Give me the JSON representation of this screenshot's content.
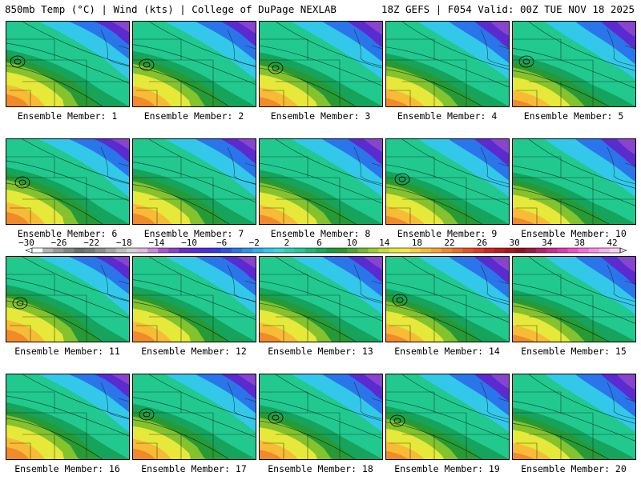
{
  "header": {
    "left_title": "850mb Temp (°C) | Wind (kts) | College of DuPage NEXLAB",
    "right_title": "18Z GEFS | F054 Valid: 00Z TUE NOV 18 2025"
  },
  "panels": [
    {
      "label": "Ensemble Member: 1",
      "low": true
    },
    {
      "label": "Ensemble Member: 2",
      "low": true
    },
    {
      "label": "Ensemble Member: 3",
      "low": true
    },
    {
      "label": "Ensemble Member: 4",
      "low": false
    },
    {
      "label": "Ensemble Member: 5",
      "low": true
    },
    {
      "label": "Ensemble Member: 6",
      "low": true
    },
    {
      "label": "Ensemble Member: 7",
      "low": false
    },
    {
      "label": "Ensemble Member: 8",
      "low": false
    },
    {
      "label": "Ensemble Member: 9",
      "low": true
    },
    {
      "label": "Ensemble Member: 10",
      "low": false
    },
    {
      "label": "Ensemble Member: 11",
      "low": true
    },
    {
      "label": "Ensemble Member: 12",
      "low": false
    },
    {
      "label": "Ensemble Member: 13",
      "low": false
    },
    {
      "label": "Ensemble Member: 14",
      "low": true
    },
    {
      "label": "Ensemble Member: 15",
      "low": false
    },
    {
      "label": "Ensemble Member: 16",
      "low": false
    },
    {
      "label": "Ensemble Member: 17",
      "low": true
    },
    {
      "label": "Ensemble Member: 18",
      "low": true
    },
    {
      "label": "Ensemble Member: 19",
      "low": true
    },
    {
      "label": "Ensemble Member: 20",
      "low": false
    }
  ],
  "colorbar": {
    "tick_labels": [
      "−30",
      "−26",
      "−22",
      "−18",
      "−14",
      "−10",
      "−6",
      "−2",
      "2",
      "6",
      "10",
      "14",
      "18",
      "22",
      "26",
      "30",
      "34",
      "38",
      "42"
    ],
    "colors": [
      "#ffffff",
      "#b4b4b4",
      "#9a9a9a",
      "#848484",
      "#6e6e6e",
      "#787878",
      "#8c8c8c",
      "#a6a6a6",
      "#bebebe",
      "#d2d2d2",
      "#e1b9e1",
      "#cc88dd",
      "#aa55cc",
      "#8844cc",
      "#6a2bcc",
      "#5b2bd0",
      "#4a2fd8",
      "#3a3ae0",
      "#2c55e6",
      "#2a75ea",
      "#2c93ee",
      "#30b0f0",
      "#33c8ea",
      "#3ad6dc",
      "#2fcfb7",
      "#25c79b",
      "#1eb77a",
      "#18a85f",
      "#1b9a44",
      "#2a9a2c",
      "#4aa82a",
      "#72bb2c",
      "#9ccd31",
      "#c3dd35",
      "#e6e83a",
      "#f8e83c",
      "#f9d23a",
      "#f8bb35",
      "#f7a230",
      "#f2882b",
      "#ee6e27",
      "#e85224",
      "#e23a22",
      "#d52420",
      "#c01a1a",
      "#a8161a",
      "#921318",
      "#9a1a48",
      "#b6226e",
      "#cb2c92",
      "#de38b4",
      "#ee4ed0",
      "#f56ce0",
      "#f88ee8",
      "#fab0f0",
      "#fcd0f6"
    ]
  }
}
